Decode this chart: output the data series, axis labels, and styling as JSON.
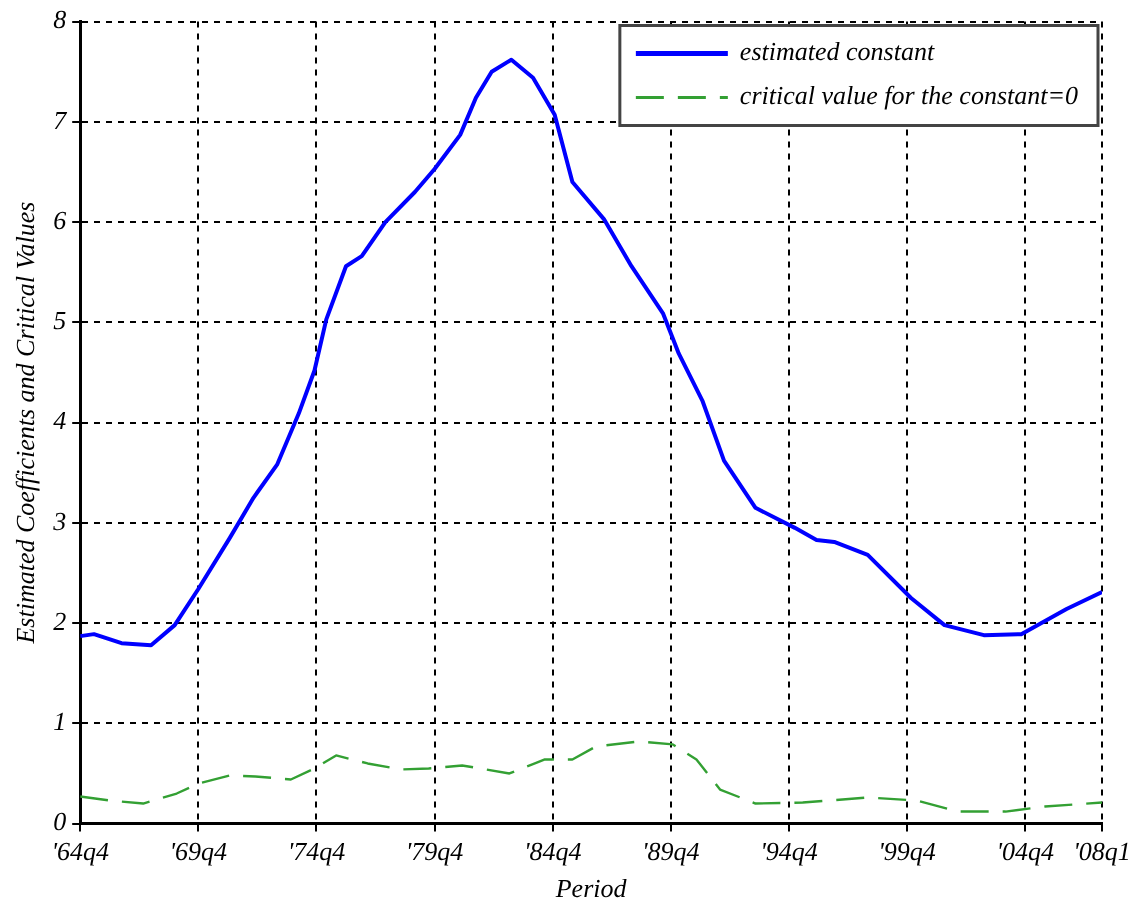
{
  "chart_data": {
    "type": "line",
    "xlabel": "Period",
    "ylabel": "Estimated Coefficients and Critical Values",
    "xlim": [
      "1964-10",
      "2008-01"
    ],
    "ylim": [
      0,
      8
    ],
    "xticks": [
      {
        "value": "1964-10",
        "label": "'64q4"
      },
      {
        "value": "1969-10",
        "label": "'69q4"
      },
      {
        "value": "1974-10",
        "label": "'74q4"
      },
      {
        "value": "1979-10",
        "label": "'79q4"
      },
      {
        "value": "1984-10",
        "label": "'84q4"
      },
      {
        "value": "1989-10",
        "label": "'89q4"
      },
      {
        "value": "1994-10",
        "label": "'94q4"
      },
      {
        "value": "1999-10",
        "label": "'99q4"
      },
      {
        "value": "2004-10",
        "label": "'04q4"
      },
      {
        "value": "2008-01",
        "label": "'08q1"
      }
    ],
    "yticks": [
      0,
      1,
      2,
      3,
      4,
      5,
      6,
      7,
      8
    ],
    "grid": true,
    "legend": "top right",
    "marker": "none",
    "series": [
      {
        "name": "estimated constant",
        "color": "#0000ff",
        "line_style": "solid",
        "x": [
          "1964-10",
          "1965-05",
          "1966-07",
          "1967-10",
          "1968-10",
          "1969-10",
          "1971-02",
          "1972-02",
          "1973-02",
          "1974-01",
          "1974-09",
          "1975-03",
          "1976-01",
          "1976-09",
          "1977-09",
          "1978-12",
          "1979-10",
          "1980-11",
          "1981-07",
          "1982-03",
          "1983-01",
          "1983-12",
          "1984-11",
          "1985-08",
          "1986-12",
          "1988-02",
          "1989-06",
          "1990-02",
          "1991-02",
          "1992-01",
          "1993-05",
          "1995-01",
          "1995-12",
          "1996-09",
          "1998-02",
          "1999-12",
          "2001-05",
          "2003-01",
          "2004-08",
          "2006-07",
          "2008-01"
        ],
        "values": [
          1.87,
          1.89,
          1.8,
          1.78,
          1.98,
          2.34,
          2.85,
          3.25,
          3.58,
          4.09,
          4.52,
          5.03,
          5.56,
          5.66,
          6.0,
          6.3,
          6.53,
          6.87,
          7.24,
          7.5,
          7.62,
          7.44,
          7.07,
          6.4,
          6.03,
          5.56,
          5.09,
          4.69,
          4.22,
          3.62,
          3.15,
          2.95,
          2.83,
          2.81,
          2.68,
          2.25,
          1.98,
          1.88,
          1.89,
          2.14,
          2.31
        ]
      },
      {
        "name": "critical value for the constant=0",
        "color": "#33a033",
        "line_style": "dashed",
        "x": [
          "1964-10",
          "1966-01",
          "1967-06",
          "1968-11",
          "1969-10",
          "1971-02",
          "1972-03",
          "1973-09",
          "1974-08",
          "1975-08",
          "1976-12",
          "1978-05",
          "1979-07",
          "1980-12",
          "1982-12",
          "1984-06",
          "1985-08",
          "1986-08",
          "1988-06",
          "1989-11",
          "1990-11",
          "1991-11",
          "1993-05",
          "1995-05",
          "1998-02",
          "2000-03",
          "2001-12",
          "2003-12",
          "2005-08",
          "2008-01"
        ],
        "values": [
          0.27,
          0.23,
          0.2,
          0.3,
          0.4,
          0.48,
          0.47,
          0.44,
          0.54,
          0.68,
          0.6,
          0.54,
          0.55,
          0.58,
          0.5,
          0.64,
          0.64,
          0.77,
          0.82,
          0.79,
          0.64,
          0.34,
          0.2,
          0.21,
          0.26,
          0.23,
          0.12,
          0.12,
          0.17,
          0.21
        ]
      }
    ]
  }
}
